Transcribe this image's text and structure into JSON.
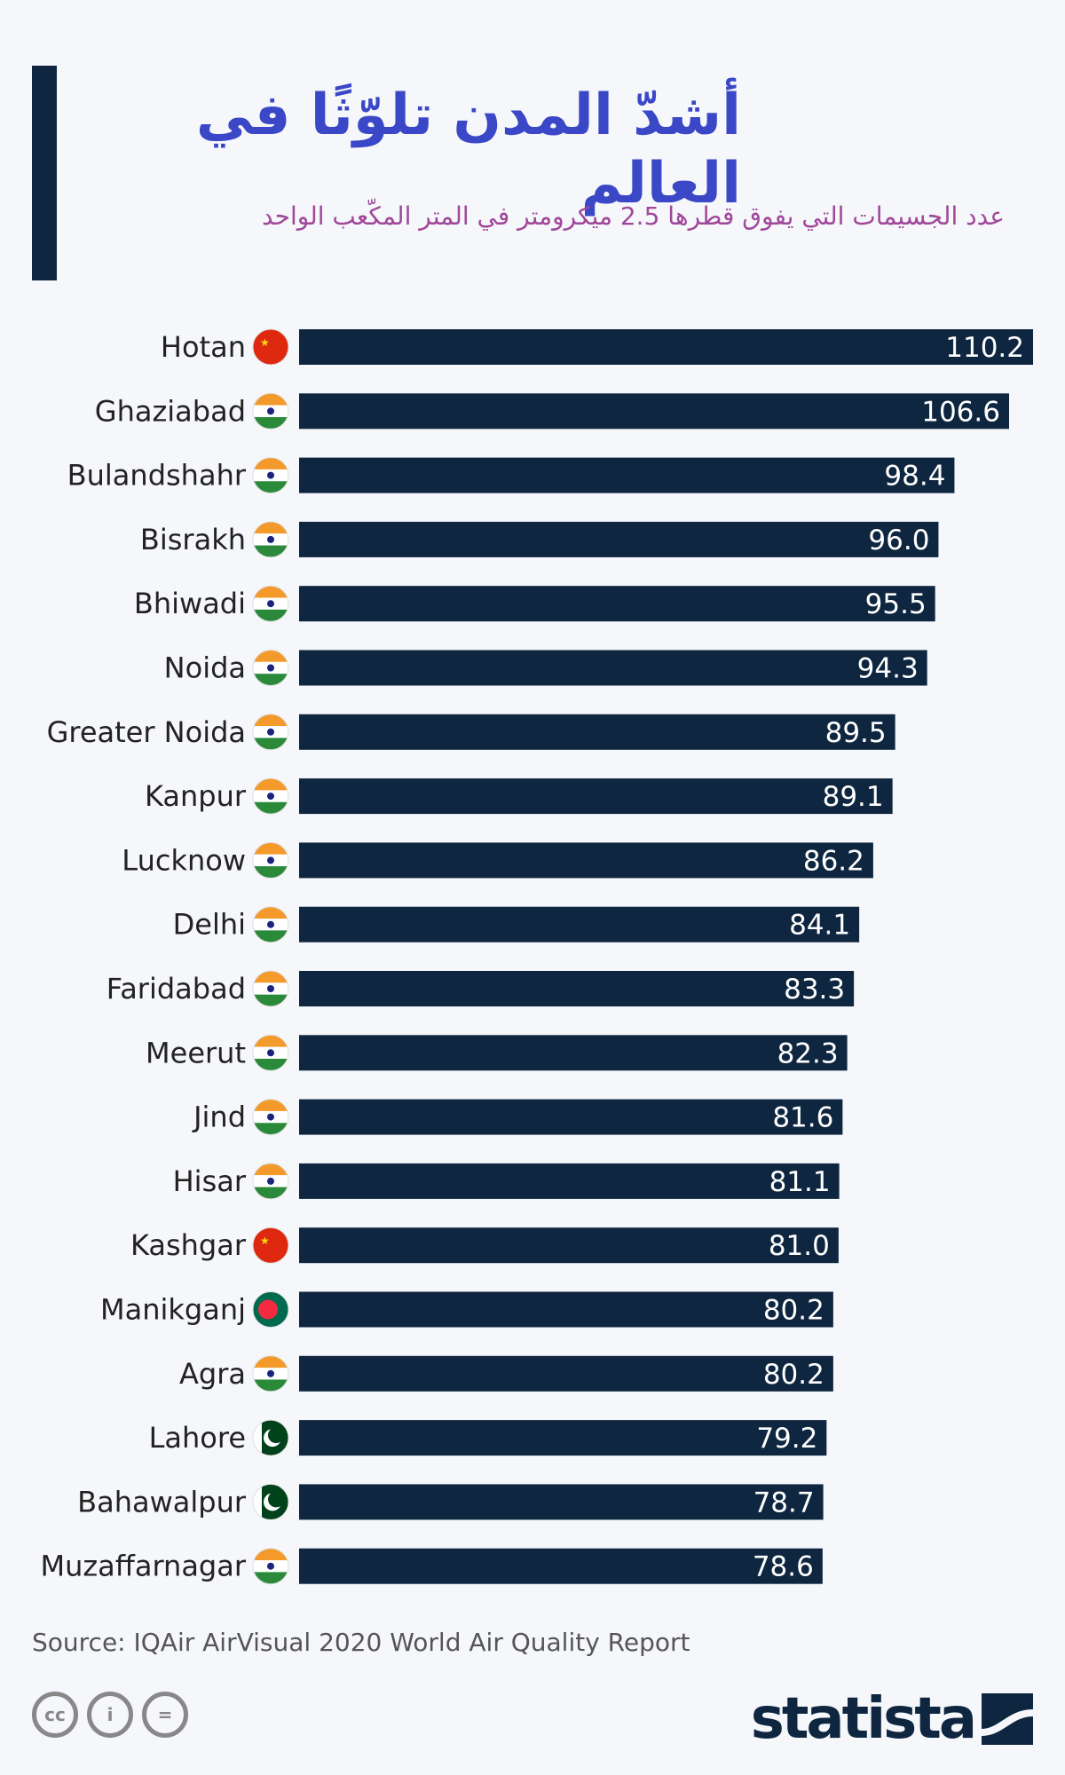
{
  "header": {
    "title": "أشدّ المدن تلوّثًا في العالم",
    "subtitle": "عدد الجسيمات التي يفوق قطرها 2.5 ميكرومتر في المتر المكّعب الواحد"
  },
  "chart_data": {
    "type": "bar",
    "orientation": "horizontal",
    "categories": [
      "Hotan",
      "Ghaziabad",
      "Bulandshahr",
      "Bisrakh",
      "Bhiwadi",
      "Noida",
      "Greater Noida",
      "Kanpur",
      "Lucknow",
      "Delhi",
      "Faridabad",
      "Meerut",
      "Jind",
      "Hisar",
      "Kashgar",
      "Manikganj",
      "Agra",
      "Lahore",
      "Bahawalpur",
      "Muzaffarnagar"
    ],
    "countries": [
      "china",
      "india",
      "india",
      "india",
      "india",
      "india",
      "india",
      "india",
      "india",
      "india",
      "india",
      "india",
      "india",
      "india",
      "china",
      "bangladesh",
      "india",
      "pakistan",
      "pakistan",
      "india"
    ],
    "values": [
      110.2,
      106.6,
      98.4,
      96.0,
      95.5,
      94.3,
      89.5,
      89.1,
      86.2,
      84.1,
      83.3,
      82.3,
      81.6,
      81.1,
      81.0,
      80.2,
      80.2,
      79.2,
      78.7,
      78.6
    ],
    "value_labels": [
      "110.2",
      "106.6",
      "98.4",
      "96.0",
      "95.5",
      "94.3",
      "89.5",
      "89.1",
      "86.2",
      "84.1",
      "83.3",
      "82.3",
      "81.6",
      "81.1",
      "81.0",
      "80.2",
      "80.2",
      "79.2",
      "78.7",
      "78.6"
    ],
    "bar_color": "#0f2640",
    "xlim": [
      0,
      110.2
    ],
    "grid": false
  },
  "footer": {
    "source": "Source: IQAir AirVisual 2020 World Air Quality Report",
    "brand": "statista",
    "license_icons": [
      "cc-icon",
      "attribution-icon",
      "no-derivatives-icon"
    ]
  }
}
